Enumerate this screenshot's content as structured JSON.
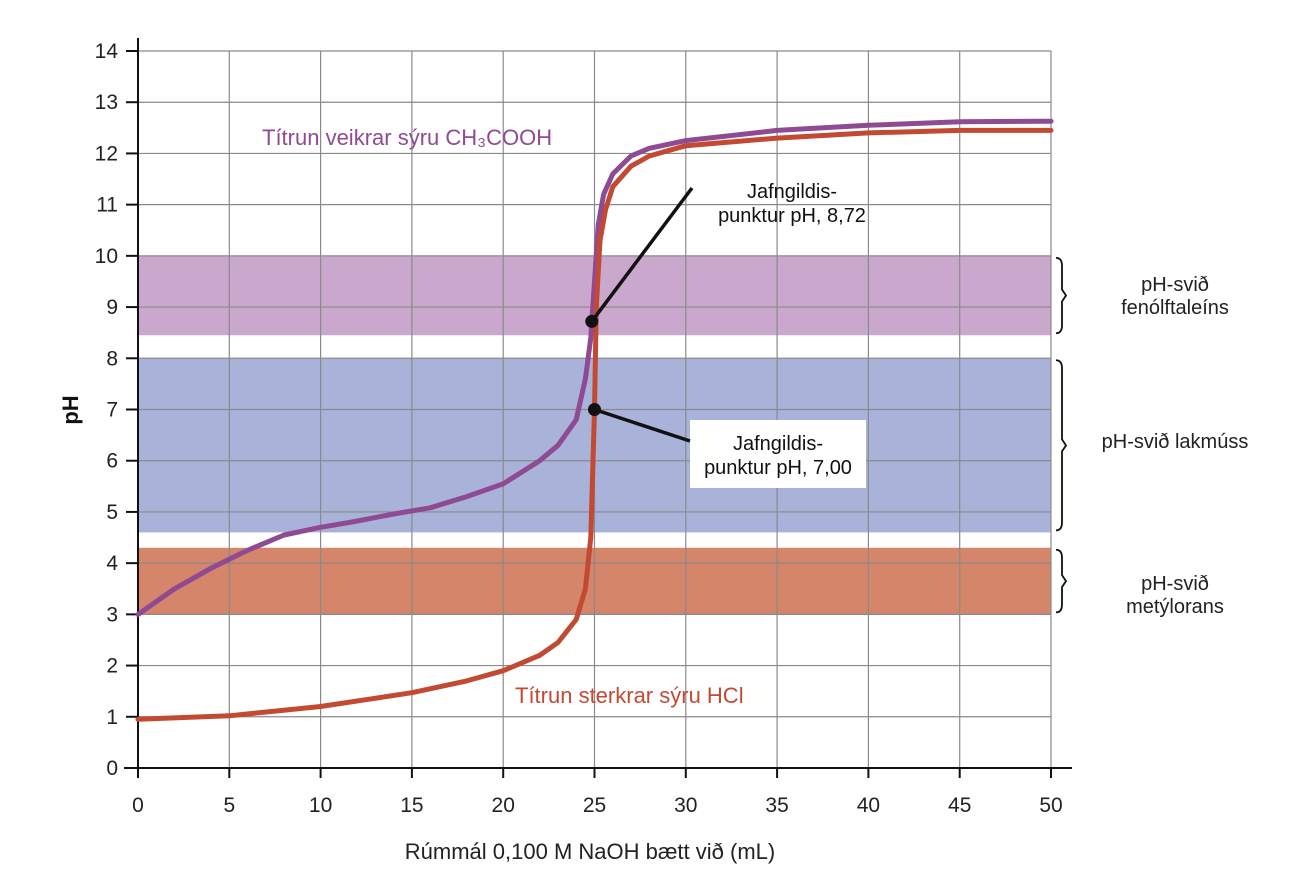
{
  "chart_data": {
    "type": "line",
    "xlabel": "Rúmmál 0,100 M NaOH bætt við (mL)",
    "ylabel": "pH",
    "xlim": [
      0,
      50
    ],
    "ylim": [
      0,
      14
    ],
    "x_ticks": [
      "0",
      "5",
      "10",
      "15",
      "20",
      "25",
      "30",
      "35",
      "40",
      "45",
      "50"
    ],
    "y_ticks": [
      "0",
      "1",
      "2",
      "3",
      "4",
      "5",
      "6",
      "7",
      "8",
      "9",
      "10",
      "11",
      "12",
      "13",
      "14"
    ],
    "grid": true,
    "bands": [
      {
        "label_lines": [
          "pH-svið",
          "fenólftaleíns"
        ],
        "y_range": [
          8.45,
          10.0
        ],
        "color": "#caa7cc"
      },
      {
        "label_lines": [
          "pH-svið lakmúss"
        ],
        "y_range": [
          4.6,
          8.0
        ],
        "color": "#a9b3d9"
      },
      {
        "label_lines": [
          "pH-svið",
          "metýlorans"
        ],
        "y_range": [
          3.0,
          4.3
        ],
        "color": "#d4856a"
      }
    ],
    "series": [
      {
        "name": "Títrun veikrar sýru CH₃COOH",
        "color": "#8e4a93",
        "x": [
          0,
          2,
          4,
          6,
          8,
          10,
          12,
          14,
          16,
          18,
          20,
          22,
          23,
          24,
          24.5,
          24.8,
          25,
          25.2,
          25.5,
          26,
          27,
          28,
          30,
          35,
          40,
          45,
          50
        ],
        "y": [
          3.0,
          3.5,
          3.9,
          4.25,
          4.55,
          4.7,
          4.82,
          4.96,
          5.08,
          5.3,
          5.55,
          6.0,
          6.3,
          6.8,
          7.6,
          8.4,
          9.5,
          10.6,
          11.2,
          11.6,
          11.95,
          12.1,
          12.25,
          12.45,
          12.55,
          12.62,
          12.63
        ]
      },
      {
        "name": "Títrun sterkrar sýru HCl",
        "color": "#c34a32",
        "x": [
          0,
          5,
          10,
          15,
          18,
          20,
          22,
          23,
          24,
          24.5,
          24.8,
          25,
          25.1,
          25.3,
          25.6,
          26,
          27,
          28,
          30,
          35,
          40,
          45,
          50
        ],
        "y": [
          0.95,
          1.02,
          1.2,
          1.47,
          1.7,
          1.9,
          2.2,
          2.45,
          2.9,
          3.5,
          4.5,
          7.0,
          9.0,
          10.3,
          10.9,
          11.35,
          11.75,
          11.95,
          12.15,
          12.3,
          12.4,
          12.45,
          12.45
        ]
      }
    ],
    "annotations": [
      {
        "lines": [
          "Jafngildis-",
          "punktur pH, 8,72"
        ],
        "point": {
          "x": 24.85,
          "y": 8.72
        }
      },
      {
        "lines": [
          "Jafngildis-",
          "punktur pH, 7,00"
        ],
        "point": {
          "x": 25.0,
          "y": 7.0
        }
      }
    ]
  }
}
